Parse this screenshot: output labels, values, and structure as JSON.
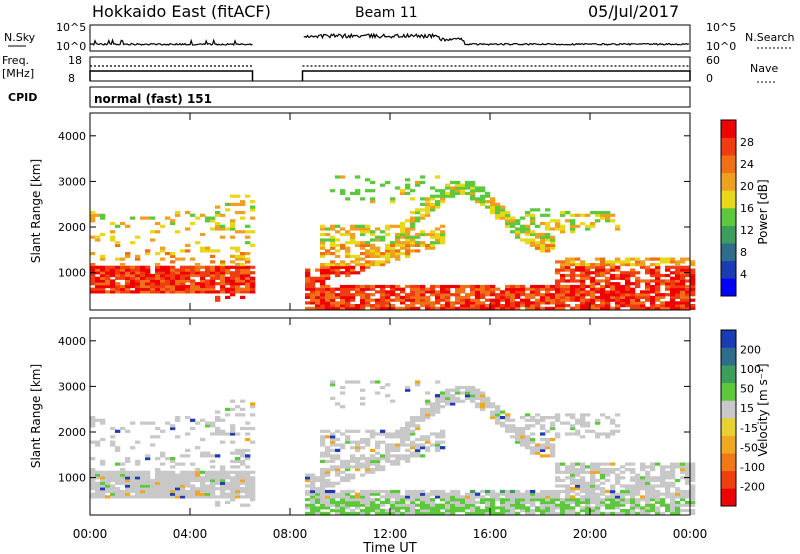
{
  "header": {
    "title": "Hokkaido East (fitACF)",
    "beam": "Beam 11",
    "date": "05/Jul/2017"
  },
  "aux_panels": {
    "nsky_label": "N.Sky",
    "nsearch_label": "N.Search",
    "nsky_ticks": [
      "10^5",
      "10^0"
    ],
    "nsearch_ticks": [
      "10^5",
      "10^0"
    ],
    "freq_label": "Freq.",
    "freq_unit": "[MHz]",
    "freq_ticks": [
      "18",
      "8"
    ],
    "nave_label": "Nave",
    "nave_ticks": [
      "60",
      "0"
    ],
    "cpid_label": "CPID",
    "cpid_text": "normal (fast) 151"
  },
  "chart_data": [
    {
      "type": "heatmap",
      "name": "power",
      "ylabel": "Slant Range [km]",
      "yticks": [
        "4000",
        "3000",
        "2000",
        "1000"
      ],
      "ylim": [
        180,
        4500
      ],
      "xlim": [
        0,
        24
      ],
      "xticks": [
        "00:00",
        "04:00",
        "08:00",
        "12:00",
        "16:00",
        "20:00",
        "00:00"
      ],
      "xlabel": "Time UT",
      "data_gap": [
        6.5,
        8.5
      ],
      "colorbar": {
        "label": "Power [dB]",
        "ticks": [
          "28",
          "24",
          "20",
          "16",
          "12",
          "8",
          "4"
        ],
        "colors": [
          "#0000ff",
          "#1a3cb4",
          "#2e6e8c",
          "#3c9e5a",
          "#5cc83c",
          "#e8d818",
          "#f0a020",
          "#f07018",
          "#f03c10",
          "#f00000"
        ]
      }
    },
    {
      "type": "heatmap",
      "name": "velocity",
      "ylabel": "Slant Range [km]",
      "yticks": [
        "4000",
        "3000",
        "2000",
        "1000"
      ],
      "ylim": [
        180,
        4500
      ],
      "xlim": [
        0,
        24
      ],
      "xticks": [
        "00:00",
        "04:00",
        "08:00",
        "12:00",
        "16:00",
        "20:00",
        "00:00"
      ],
      "xlabel": "Time UT",
      "data_gap": [
        6.5,
        8.5
      ],
      "colorbar": {
        "label": "Velocity [m s⁻¹]",
        "ticks": [
          "200",
          "100",
          "50",
          "15",
          "-15",
          "-50",
          "-100",
          "-200"
        ],
        "colors": [
          "#f00000",
          "#f04010",
          "#f07818",
          "#f0a820",
          "#e8d030",
          "#c8c8c8",
          "#5cc83c",
          "#3c9e5a",
          "#2e6e8c",
          "#1a3cb4"
        ]
      }
    }
  ]
}
